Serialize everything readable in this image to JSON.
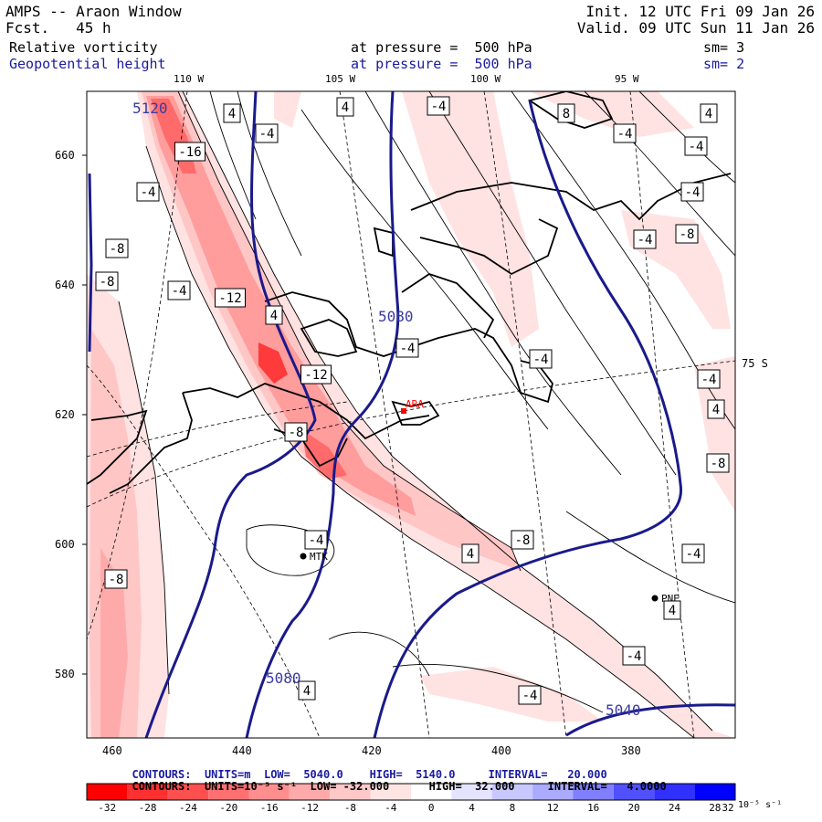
{
  "header": {
    "title": "AMPS -- Araon Window",
    "forecast": "Fcst.   45 h",
    "init": "Init. 12 UTC Fri 09 Jan 26",
    "valid": "Valid. 09 UTC Sun 11 Jan 26",
    "field1": {
      "name": "Relative vorticity",
      "level": "at pressure =  500 hPa",
      "smooth": "sm= 3"
    },
    "field2": {
      "name": "Geopotential height",
      "level": "at pressure =  500 hPa",
      "smooth": "sm= 2"
    }
  },
  "top_axis_labels": [
    "110 W",
    "105 W",
    "100 W",
    "95 W"
  ],
  "right_axis_label": "75 S",
  "left_axis_labels": [
    "660",
    "640",
    "620",
    "600",
    "580"
  ],
  "bottom_axis_labels": [
    "460",
    "440",
    "420",
    "400",
    "380"
  ],
  "stations": [
    {
      "name": "ARA",
      "color": "#ff0000"
    },
    {
      "name": "MTK",
      "color": "#000000"
    },
    {
      "name": "PNE",
      "color": "#000000"
    }
  ],
  "height_contour_labels": [
    "5120",
    "5080",
    "5080",
    "5040"
  ],
  "vorticity_labels": [
    "4",
    "-4",
    "4",
    "-4",
    "8",
    "-4",
    "4",
    "-16",
    "-4",
    "-4",
    "-4",
    "-8",
    "-8",
    "-4",
    "-8",
    "-12",
    "4",
    "-4",
    "-4",
    "-4",
    "-4",
    "-12",
    "-8",
    "4",
    "-8",
    "-4",
    "-8",
    "4",
    "-4",
    "-8",
    "4",
    "-4",
    "4",
    "-4"
  ],
  "footer": {
    "line1": {
      "label": "CONTOURS:",
      "units": "UNITS=m",
      "low": "LOW=  5040.0",
      "high": "HIGH=  5140.0",
      "interval": "INTERVAL=   20.000"
    },
    "line2": {
      "label": "CONTOURS:",
      "units": "UNITS=10⁻⁵ s⁻¹",
      "low": "LOW= -32.000",
      "high": "HIGH=  32.000",
      "interval": "INTERVAL=   4.0000"
    }
  },
  "colorbar": {
    "ticks": [
      "-32",
      "-28",
      "-24",
      "-20",
      "-16",
      "-12",
      "-8",
      "-4",
      "0",
      "4",
      "8",
      "12",
      "16",
      "20",
      "24",
      "28",
      "32"
    ],
    "unit": "10⁻⁵ s⁻¹",
    "colors": [
      "#ff0000",
      "#ff3030",
      "#ff5050",
      "#ff7070",
      "#ff8f8f",
      "#ffaaaa",
      "#ffc8c8",
      "#ffe4e4",
      "#ffffff",
      "#ffffff",
      "#e4e4ff",
      "#c8c8ff",
      "#aaaaff",
      "#8080ff",
      "#5050ff",
      "#3030ff",
      "#0000ff"
    ]
  }
}
